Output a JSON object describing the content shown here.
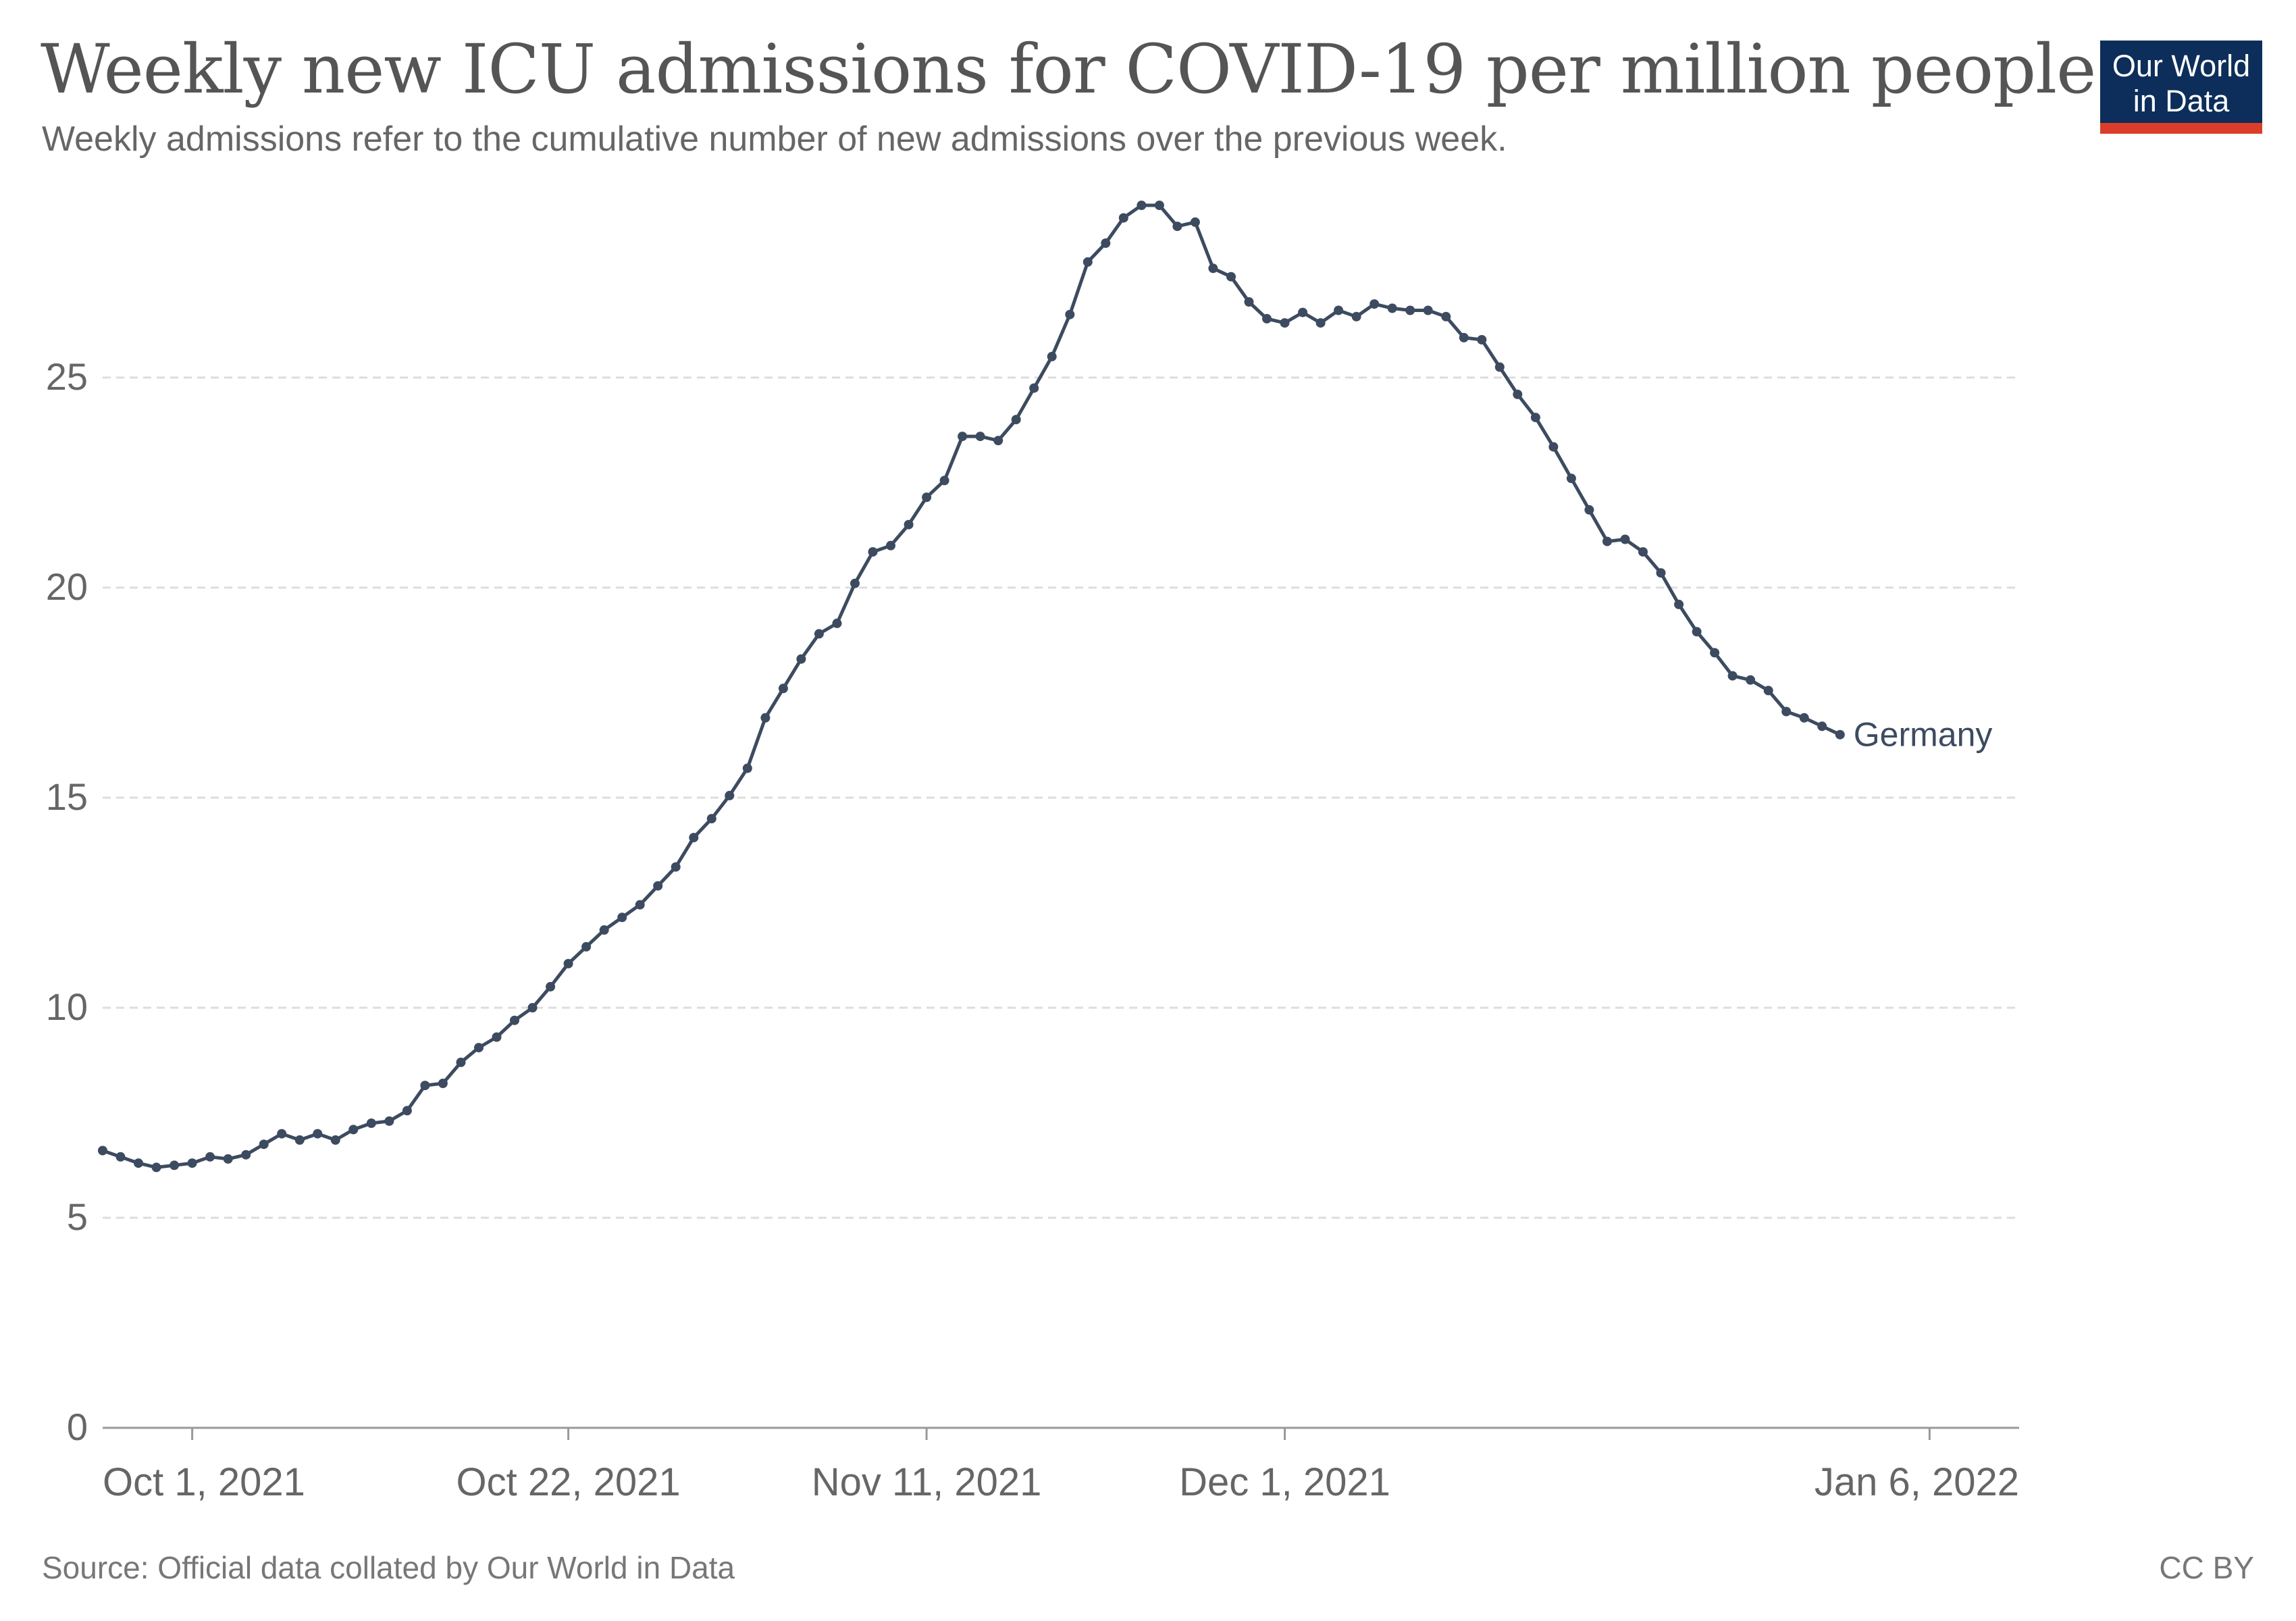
{
  "header": {
    "title": "Weekly new ICU admissions for COVID-19 per million people",
    "subtitle": "Weekly admissions refer to the cumulative number of new admissions over the previous week."
  },
  "logo": {
    "line1": "Our World",
    "line2": "in Data"
  },
  "footer": {
    "source": "Source: Official data collated by Our World in Data",
    "license": "CC BY"
  },
  "colors": {
    "series": "#3d4b60",
    "grid": "#dddddd",
    "axis": "#999999",
    "tick_text": "#666666",
    "logo_bg": "#0d2e5a",
    "logo_accent": "#dc3d2a"
  },
  "chart_data": {
    "type": "line",
    "x_start": "2021-09-26",
    "x_end": "2022-01-11",
    "xticks": [
      {
        "date": "2021-10-01",
        "label": "Oct 1, 2021"
      },
      {
        "date": "2021-10-22",
        "label": "Oct 22, 2021"
      },
      {
        "date": "2021-11-11",
        "label": "Nov 11, 2021"
      },
      {
        "date": "2021-12-01",
        "label": "Dec 1, 2021"
      },
      {
        "date": "2022-01-06",
        "label": "Jan 6, 2022"
      }
    ],
    "ylim": [
      0,
      30
    ],
    "yticks": [
      0,
      5,
      10,
      15,
      20,
      25
    ],
    "grid": true,
    "series": [
      {
        "name": "Germany",
        "values": [
          6.6,
          6.45,
          6.3,
          6.2,
          6.25,
          6.3,
          6.45,
          6.4,
          6.5,
          6.75,
          7.0,
          6.85,
          7.0,
          6.85,
          7.1,
          7.25,
          7.3,
          7.55,
          8.15,
          8.2,
          8.7,
          9.05,
          9.3,
          9.7,
          10.0,
          10.5,
          11.05,
          11.45,
          11.85,
          12.15,
          12.45,
          12.9,
          13.35,
          14.05,
          14.5,
          15.05,
          15.7,
          16.9,
          17.6,
          18.3,
          18.9,
          19.15,
          20.1,
          20.85,
          21.0,
          21.5,
          22.15,
          22.55,
          23.6,
          23.6,
          23.5,
          24.0,
          24.75,
          25.5,
          26.5,
          27.75,
          28.2,
          28.8,
          29.1,
          29.1,
          28.6,
          28.7,
          27.6,
          27.4,
          26.8,
          26.4,
          26.3,
          26.55,
          26.3,
          26.6,
          26.45,
          26.75,
          26.65,
          26.6,
          26.6,
          26.45,
          25.95,
          25.9,
          25.25,
          24.6,
          24.05,
          23.35,
          22.6,
          21.85,
          21.1,
          21.15,
          20.85,
          20.35,
          19.6,
          18.95,
          18.45,
          17.9,
          17.8,
          17.55,
          17.05,
          16.9,
          16.7,
          16.5
        ]
      }
    ]
  }
}
